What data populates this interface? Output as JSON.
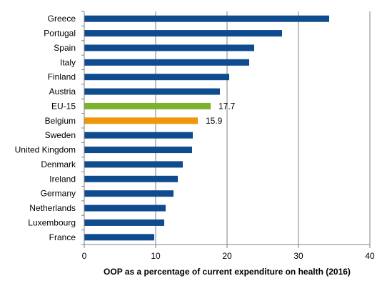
{
  "chart_data": {
    "type": "bar",
    "orientation": "horizontal",
    "title": "",
    "xlabel": "OOP as a percentage of current expenditure on health (2016)",
    "ylabel": "",
    "xlim": [
      0,
      40
    ],
    "x_ticks": [
      0,
      10,
      20,
      30,
      40
    ],
    "grid": "vertical",
    "legend": "none",
    "categories": [
      "Greece",
      "Portugal",
      "Spain",
      "Italy",
      "Finland",
      "Austria",
      "EU-15",
      "Belgium",
      "Sweden",
      "United Kingdom",
      "Denmark",
      "Ireland",
      "Germany",
      "Netherlands",
      "Luxembourg",
      "France"
    ],
    "values": [
      34.3,
      27.7,
      23.8,
      23.1,
      20.3,
      19.0,
      17.7,
      15.9,
      15.2,
      15.1,
      13.8,
      13.1,
      12.5,
      11.4,
      11.2,
      9.8
    ],
    "data_labels": {
      "EU-15": "17.7",
      "Belgium": "15.9"
    },
    "colors": {
      "default": "#0F4C8F",
      "EU-15": "#7DB22D",
      "Belgium": "#F0960B",
      "grid": "#808080",
      "axis": "#808080"
    }
  }
}
